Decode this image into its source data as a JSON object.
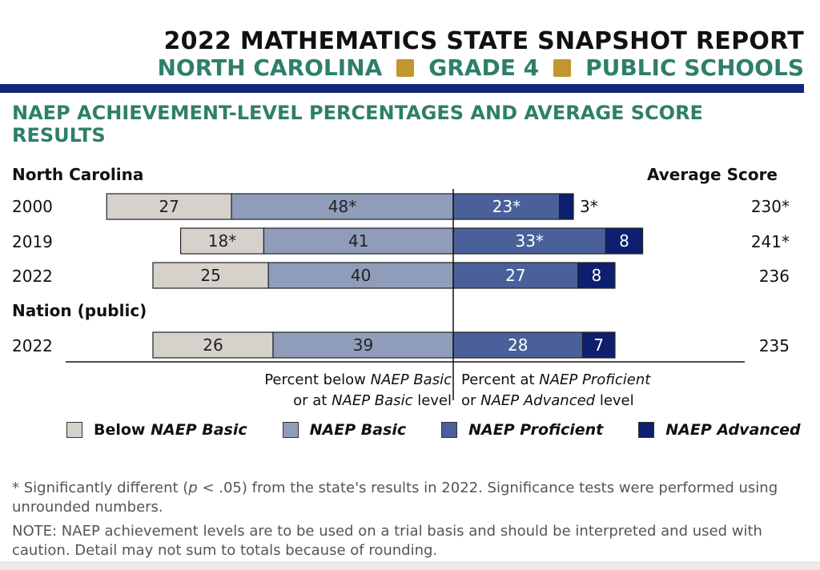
{
  "header": {
    "title": "2022 MATHEMATICS STATE SNAPSHOT REPORT",
    "state": "NORTH CAROLINA",
    "grade": "GRADE 4",
    "schools": "PUBLIC SCHOOLS"
  },
  "colors": {
    "teal": "#2e7f6a",
    "gold": "#c1962e",
    "navy_rule": "#13267a",
    "below_basic": "#d6d1cb",
    "basic": "#8f9dba",
    "proficient": "#4a609a",
    "advanced": "#0d1f6e"
  },
  "section": {
    "title": "NAEP ACHIEVEMENT-LEVEL PERCENTAGES AND AVERAGE SCORE RESULTS"
  },
  "chart_data": {
    "type": "bar",
    "orientation": "horizontal diverging stacked",
    "center_line": "between NAEP Basic and NAEP Proficient",
    "group_labels": [
      "North Carolina",
      "Nation (public)"
    ],
    "score_header": "Average Score",
    "rows": [
      {
        "group": "North Carolina",
        "year": "2000",
        "below_basic": 27,
        "below_basic_label": "27",
        "basic": 48,
        "basic_label": "48*",
        "proficient": 23,
        "proficient_label": "23*",
        "advanced": 3,
        "advanced_label": "3*",
        "score": "230*"
      },
      {
        "group": "North Carolina",
        "year": "2019",
        "below_basic": 18,
        "below_basic_label": "18*",
        "basic": 41,
        "basic_label": "41",
        "proficient": 33,
        "proficient_label": "33*",
        "advanced": 8,
        "advanced_label": "8",
        "score": "241*"
      },
      {
        "group": "North Carolina",
        "year": "2022",
        "below_basic": 25,
        "below_basic_label": "25",
        "basic": 40,
        "basic_label": "40",
        "proficient": 27,
        "proficient_label": "27",
        "advanced": 8,
        "advanced_label": "8",
        "score": "236"
      },
      {
        "group": "Nation (public)",
        "year": "2022",
        "below_basic": 26,
        "below_basic_label": "26",
        "basic": 39,
        "basic_label": "39",
        "proficient": 28,
        "proficient_label": "28",
        "advanced": 7,
        "advanced_label": "7",
        "score": "235"
      }
    ],
    "captions": {
      "left_line1_pre": "Percent below ",
      "left_line1_em": "NAEP Basic",
      "left_line2_pre": "or at ",
      "left_line2_em": "NAEP Basic",
      "left_line2_post": " level",
      "right_line1_pre": "Percent at ",
      "right_line1_em": "NAEP Proficient",
      "right_line2_pre": "or ",
      "right_line2_em": "NAEP Advanced",
      "right_line2_post": " level"
    },
    "legend": [
      {
        "prefix": "Below ",
        "name": "NAEP Basic",
        "color": "#d6d1cb"
      },
      {
        "prefix": "",
        "name": "NAEP Basic",
        "color": "#8f9dba"
      },
      {
        "prefix": "",
        "name": "NAEP Proficient",
        "color": "#4a609a"
      },
      {
        "prefix": "",
        "name": "NAEP Advanced",
        "color": "#0d1f6e"
      }
    ]
  },
  "footnotes": {
    "significance_pre": "*  Significantly different (",
    "significance_p": "p",
    "significance_post": " < .05) from the state's results in 2022. Significance tests were performed using unrounded numbers.",
    "note": "NOTE:  NAEP achievement levels are to be used on a trial basis and should be interpreted and used with caution. Detail may not sum to totals because of rounding."
  }
}
